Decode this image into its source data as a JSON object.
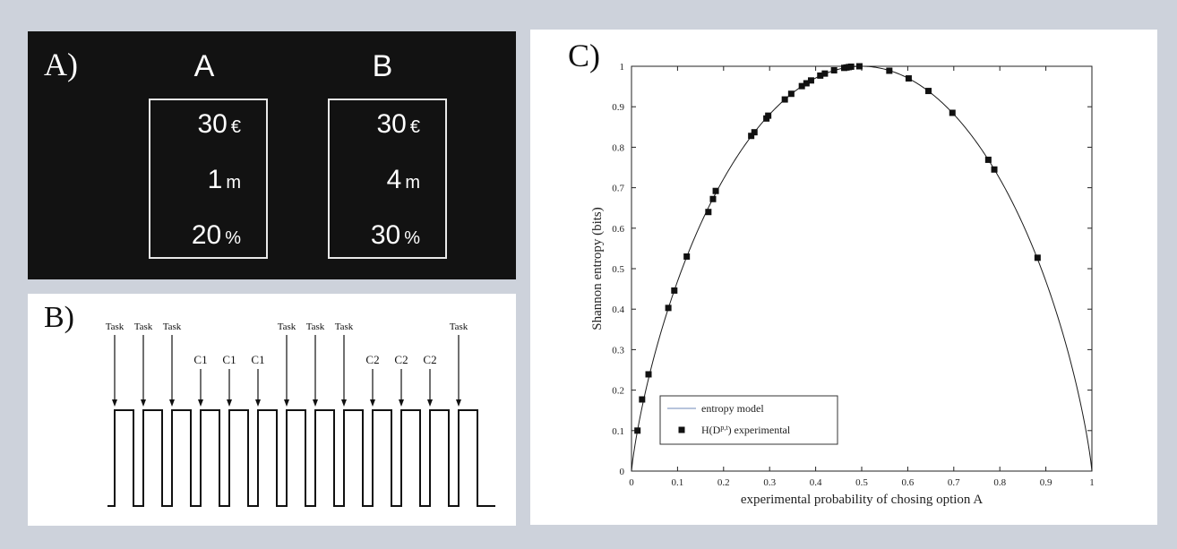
{
  "panelA": {
    "label": "A)",
    "options": [
      {
        "name": "A",
        "rows": [
          {
            "value": "30",
            "unit": "€"
          },
          {
            "value": "1",
            "unit": "m"
          },
          {
            "value": "20",
            "unit": "%"
          }
        ]
      },
      {
        "name": "B",
        "rows": [
          {
            "value": "30",
            "unit": "€"
          },
          {
            "value": "4",
            "unit": "m"
          },
          {
            "value": "30",
            "unit": "%"
          }
        ]
      }
    ]
  },
  "panelB": {
    "label": "B)",
    "arrows": [
      {
        "label": "Task",
        "type": "task"
      },
      {
        "label": "Task",
        "type": "task"
      },
      {
        "label": "Task",
        "type": "task"
      },
      {
        "label": "C1",
        "type": "cue"
      },
      {
        "label": "C1",
        "type": "cue"
      },
      {
        "label": "C1",
        "type": "cue"
      },
      {
        "label": "Task",
        "type": "task"
      },
      {
        "label": "Task",
        "type": "task"
      },
      {
        "label": "Task",
        "type": "task"
      },
      {
        "label": "C2",
        "type": "cue"
      },
      {
        "label": "C2",
        "type": "cue"
      },
      {
        "label": "C2",
        "type": "cue"
      },
      {
        "label": "Task",
        "type": "task"
      }
    ]
  },
  "panelC": {
    "label": "C)",
    "chart_data": {
      "type": "scatter",
      "title": "",
      "xlabel": "experimental probability of chosing option A",
      "ylabel": "Shannon entropy (bits)",
      "xlim": [
        0,
        1
      ],
      "ylim": [
        0,
        1
      ],
      "xticks": [
        "0",
        "0.1",
        "0.2",
        "0.3",
        "0.4",
        "0.5",
        "0.6",
        "0.7",
        "0.8",
        "0.9",
        "1"
      ],
      "yticks": [
        "0",
        "0.1",
        "0.2",
        "0.3",
        "0.4",
        "0.5",
        "0.6",
        "0.7",
        "0.8",
        "0.9",
        "1"
      ],
      "legend_position": "bottom-left",
      "series": [
        {
          "name": "entropy model",
          "kind": "line",
          "color": "#1a1a1a",
          "legend_color": "#9fb0d0"
        },
        {
          "name": "H(D",
          "superscript": "p,t",
          "name_suffix": ") experimental",
          "kind": "markers",
          "color": "#111111",
          "x": [
            0.013,
            0.023,
            0.037,
            0.08,
            0.093,
            0.12,
            0.167,
            0.177,
            0.183,
            0.26,
            0.267,
            0.293,
            0.297,
            0.333,
            0.347,
            0.37,
            0.38,
            0.39,
            0.41,
            0.42,
            0.44,
            0.462,
            0.467,
            0.472,
            0.477,
            0.495,
            0.56,
            0.602,
            0.645,
            0.697,
            0.775,
            0.788,
            0.882
          ],
          "y": [
            0.1,
            0.177,
            0.239,
            0.403,
            0.446,
            0.53,
            0.64,
            0.672,
            0.692,
            0.828,
            0.837,
            0.871,
            0.878,
            0.918,
            0.932,
            0.951,
            0.958,
            0.965,
            0.977,
            0.982,
            0.99,
            0.996,
            0.997,
            0.998,
            0.999,
            1.0,
            0.989,
            0.97,
            0.939,
            0.885,
            0.769,
            0.745,
            0.527
          ]
        }
      ]
    }
  }
}
